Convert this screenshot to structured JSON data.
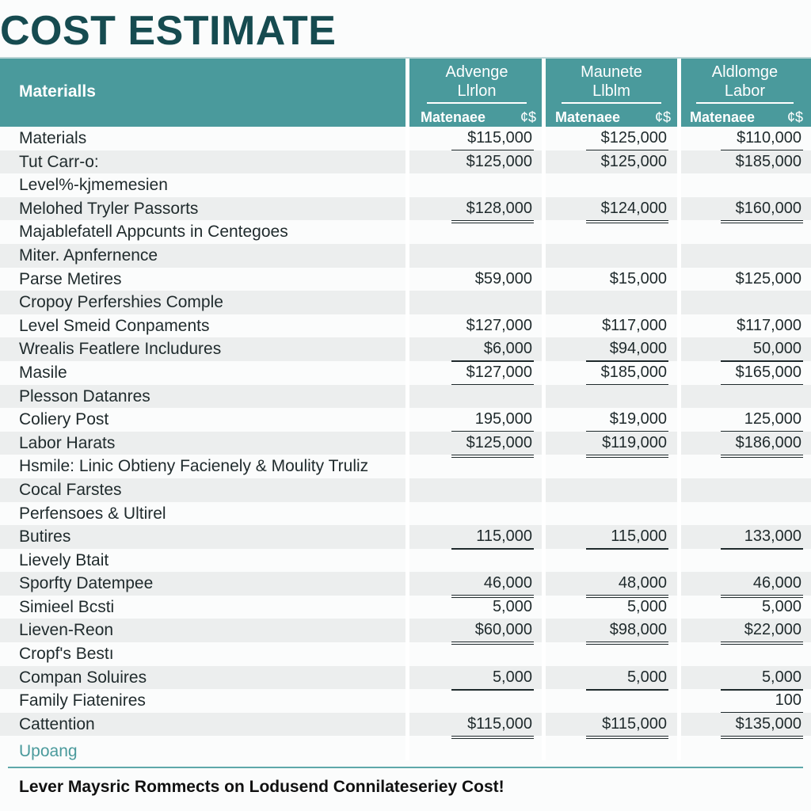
{
  "title": "COST ESTIMATE",
  "header": {
    "materials": "Materialls",
    "columns": [
      {
        "line1": "Advenge",
        "line2": "Llrlon",
        "sub": "Matenaee",
        "cur": "¢$"
      },
      {
        "line1": "Maunete",
        "line2": "Llblm",
        "sub": "Matenaee",
        "cur": "¢$"
      },
      {
        "line1": "Aldlomge",
        "line2": "Labor",
        "sub": "Matenaee",
        "cur": "¢$"
      }
    ]
  },
  "rows": [
    {
      "label": "Materials",
      "v": [
        "$115,000",
        "$125,000",
        "$110,000"
      ],
      "u": "1"
    },
    {
      "label": "Tut Carr-o:",
      "v": [
        "$125,000",
        "$125,000",
        "$185,000"
      ],
      "u": "0"
    },
    {
      "label": "Level%-kjmemesien",
      "v": [
        "",
        "",
        ""
      ],
      "u": "0"
    },
    {
      "label": "Melohed Tryler Passorts",
      "v": [
        "$128,000",
        "$124,000",
        "$160,000"
      ],
      "u": "2"
    },
    {
      "label": "Majablefatell Appcunts in Centegoes",
      "v": [
        "",
        "",
        ""
      ],
      "u": "0"
    },
    {
      "label": "Miter. Apnfernence",
      "v": [
        "",
        "",
        ""
      ],
      "u": "0"
    },
    {
      "label": "Parse Metires",
      "v": [
        "$59,000",
        "$15,000",
        "$125,000"
      ],
      "u": "2"
    },
    {
      "label": "Cropoy Perfershies Comple",
      "v": [
        "",
        "",
        ""
      ],
      "u": "0"
    },
    {
      "label": "Level Smeid Conpaments",
      "v": [
        "$127,000",
        "$117,000",
        "$117,000"
      ],
      "u": "1"
    },
    {
      "label": "Wrealis Featlere Includures",
      "v": [
        "$6,000",
        "$94,000",
        "50,000"
      ],
      "u": "1"
    },
    {
      "label": "Masile",
      "v": [
        "$127,000",
        "$185,000",
        "$165,000"
      ],
      "u": "1"
    },
    {
      "label": "Plesson Datanres",
      "v": [
        "",
        "",
        ""
      ],
      "u": "0"
    },
    {
      "label": "Coliery Post",
      "v": [
        "195,000",
        "$19,000",
        "125,000"
      ],
      "u": "1"
    },
    {
      "label": "Labor Harats",
      "v": [
        "$125,000",
        "$119,000",
        "$186,000"
      ],
      "u": "2"
    },
    {
      "label": "Hsmile: Linic Obtieny Facienely & Moulity Truliz",
      "v": [
        "",
        "",
        ""
      ],
      "u": "0"
    },
    {
      "label": "Cocal Farstes",
      "v": [
        "",
        "",
        ""
      ],
      "u": "0"
    },
    {
      "label": "Perfensoes & Ultirel",
      "v": [
        "",
        "",
        ""
      ],
      "u": "0"
    },
    {
      "label": "Butires",
      "v": [
        "115,000",
        "115,000",
        "133,000"
      ],
      "u": "1"
    },
    {
      "label": "Lievely Btait",
      "v": [
        "",
        "",
        ""
      ],
      "u": "0"
    },
    {
      "label": "Sporfty Datempee",
      "v": [
        "46,000",
        "48,000",
        "46,000"
      ],
      "u": "2"
    },
    {
      "label": "Simieel Bcsti",
      "v": [
        "5,000",
        "5,000",
        "5,000"
      ],
      "u": "2"
    },
    {
      "label": "Lieven-Reon",
      "v": [
        "$60,000",
        "$98,000",
        "$22,000"
      ],
      "u": "2"
    },
    {
      "label": "Cropf's Bestı",
      "v": [
        "",
        "",
        ""
      ],
      "u": "0"
    },
    {
      "label": "Compan Soluires",
      "v": [
        "5,000",
        "5,000",
        "5,000"
      ],
      "u": "1"
    },
    {
      "label": "Family Fiatenires",
      "v": [
        "",
        "",
        "100"
      ],
      "u": "2"
    },
    {
      "label": "Cattention",
      "v": [
        "$115,000",
        "$115,000",
        "$135,000"
      ],
      "u": "2"
    }
  ],
  "footer": {
    "label": "Upoang",
    "note": "Lever Maysric Rommects on Lodusend Connilateseriey Cost!"
  }
}
